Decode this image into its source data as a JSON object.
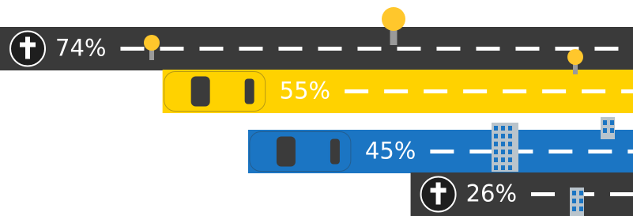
{
  "chart_data": {
    "type": "road-bar",
    "values": [
      74,
      55,
      45,
      26
    ],
    "value_labels": [
      "74%",
      "55%",
      "45%",
      "26%"
    ],
    "colors": [
      "#3a3a3a",
      "#ffd200",
      "#1b75c3",
      "#3a3a3a"
    ]
  }
}
